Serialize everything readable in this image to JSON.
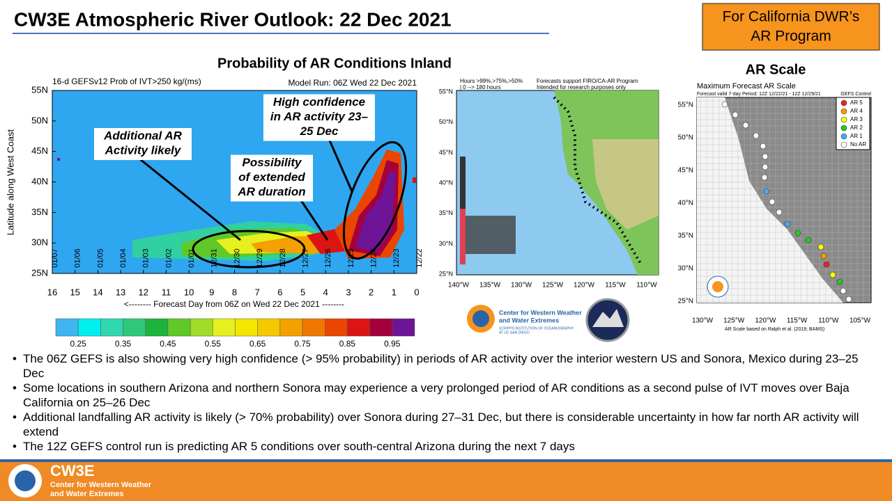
{
  "title": "CW3E Atmospheric River Outlook: 22 Dec 2021",
  "badge": [
    "For California DWR’s",
    "AR Program"
  ],
  "heatmap": {
    "title": "Probability of AR Conditions Inland",
    "subtitle": "16-d GEFSv12 Prob of IVT>250 kg/(ms)",
    "model_run": "Model Run: 06Z Wed 22 Dec 2021",
    "y_label": "Latitude along West Coast",
    "y_ticks": [
      "55N",
      "50N",
      "45N",
      "40N",
      "35N",
      "30N",
      "25N"
    ],
    "x_ticks": [
      "16",
      "15",
      "14",
      "13",
      "12",
      "11",
      "10",
      "9",
      "8",
      "7",
      "6",
      "5",
      "4",
      "3",
      "2",
      "1",
      "0"
    ],
    "x_label": "<-------- Forecast Day from 06Z on Wed 22 Dec 2021 --------",
    "dates": [
      "01/07",
      "01/06",
      "01/05",
      "01/04",
      "01/03",
      "01/02",
      "01/01",
      "12/31",
      "12/30",
      "12/29",
      "12/28",
      "12/27",
      "12/26",
      "12/25",
      "12/24",
      "12/23",
      "12/22"
    ],
    "colorbar_labels": [
      "0.25",
      "0.35",
      "0.45",
      "0.55",
      "0.65",
      "0.75",
      "0.85",
      "0.95"
    ],
    "annotations": [
      [
        "Additional AR",
        "Activity likely"
      ],
      [
        "Possibility",
        "of extended",
        "AR duration"
      ],
      [
        "High confidence",
        "in AR activity 23–",
        "25 Dec"
      ]
    ]
  },
  "map": {
    "header": [
      "Hours >99%,>75%,>50%",
      "| 0 --> 180 hours"
    ],
    "note": [
      "Forecasts support FIRO/CA-AR Program",
      "Intended for research purposes only"
    ],
    "lat_ticks": [
      "55°N",
      "50°N",
      "45°N",
      "40°N",
      "35°N",
      "30°N",
      "25°N"
    ],
    "lon_ticks": [
      "140°W",
      "135°W",
      "130°W",
      "125°W",
      "120°W",
      "115°W",
      "110°W"
    ],
    "logo": [
      "Center for Western Weather",
      "and Water Extremes",
      "SCRIPPS INSTITUTION OF OCEANOGRAPHY",
      "AT UC SAN DIEGO"
    ]
  },
  "ar_scale": {
    "title": "AR Scale",
    "subtitle": "Maximum Forecast AR Scale",
    "period": "Forecast valid 7-day Period: 12Z 12/22/21 - 12Z 12/29/21",
    "legend_title": "GEFS Control",
    "legend": [
      "AR 5",
      "AR 4",
      "AR 3",
      "AR 2",
      "AR 1",
      "No AR"
    ],
    "lat_ticks": [
      "55°N",
      "50°N",
      "45°N",
      "40°N",
      "35°N",
      "30°N",
      "25°N"
    ],
    "lon_ticks": [
      "130°W",
      "125°W",
      "120°W",
      "115°W",
      "110°W",
      "105°W"
    ],
    "credit": "AR Scale based on Ralph et al. (2019; BAMS)"
  },
  "bullets": [
    "The 06Z GEFS is also showing very high confidence (> 95% probability) in periods of AR activity over the interior western US and Sonora, Mexico during 23–25 Dec",
    "Some locations in southern Arizona and northern Sonora may experience a very prolonged period of AR conditions as a second pulse of IVT moves over Baja California on 25–26 Dec",
    "Additional landfalling AR activity is likely (> 70% probability) over Sonora during 27–31 Dec, but there is considerable uncertainty in how far north AR activity will extend",
    "The 12Z GEFS control run is predicting AR 5 conditions over south-central Arizona during the next 7 days"
  ],
  "footer": {
    "name": "CW3E",
    "lines": [
      "Center for Western Weather",
      "and Water Extremes"
    ]
  }
}
